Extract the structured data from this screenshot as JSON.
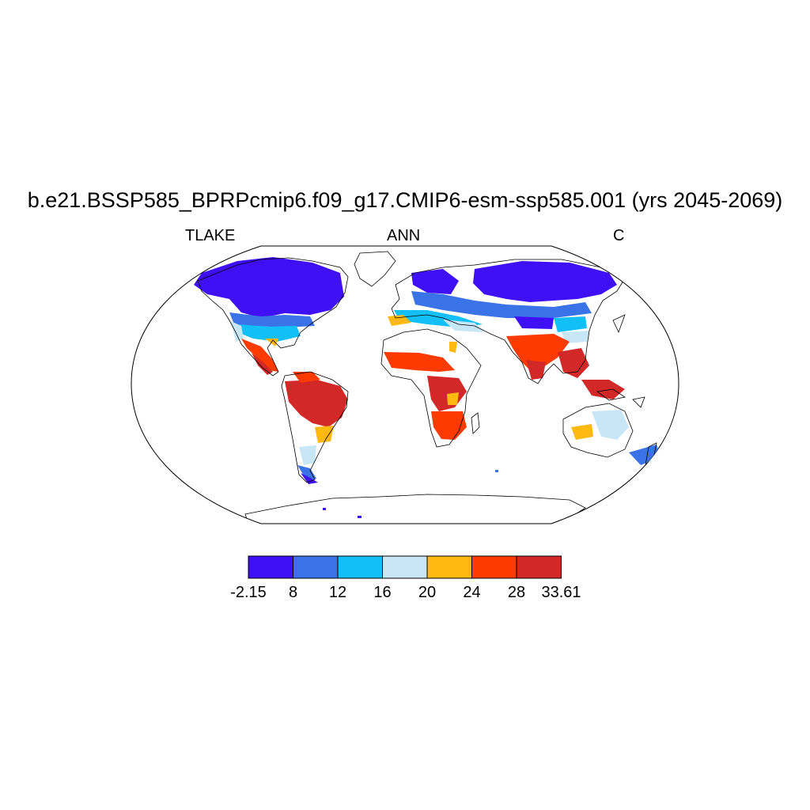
{
  "title": "b.e21.BSSP585_BPRPcmip6.f09_g17.CMIP6-esm-ssp585.001 (yrs 2045-2069)",
  "left_string": "TLAKE",
  "center_string": "ANN",
  "right_string": "C",
  "projection": "Robinson",
  "colorbar": {
    "levels": [
      "-2.15",
      "8",
      "12",
      "16",
      "20",
      "24",
      "28",
      "33.61"
    ],
    "colors": [
      "#3f10f6",
      "#3a73e8",
      "#13bff7",
      "#c7e6f6",
      "#feb911",
      "#fd3a02",
      "#d22828"
    ]
  }
}
